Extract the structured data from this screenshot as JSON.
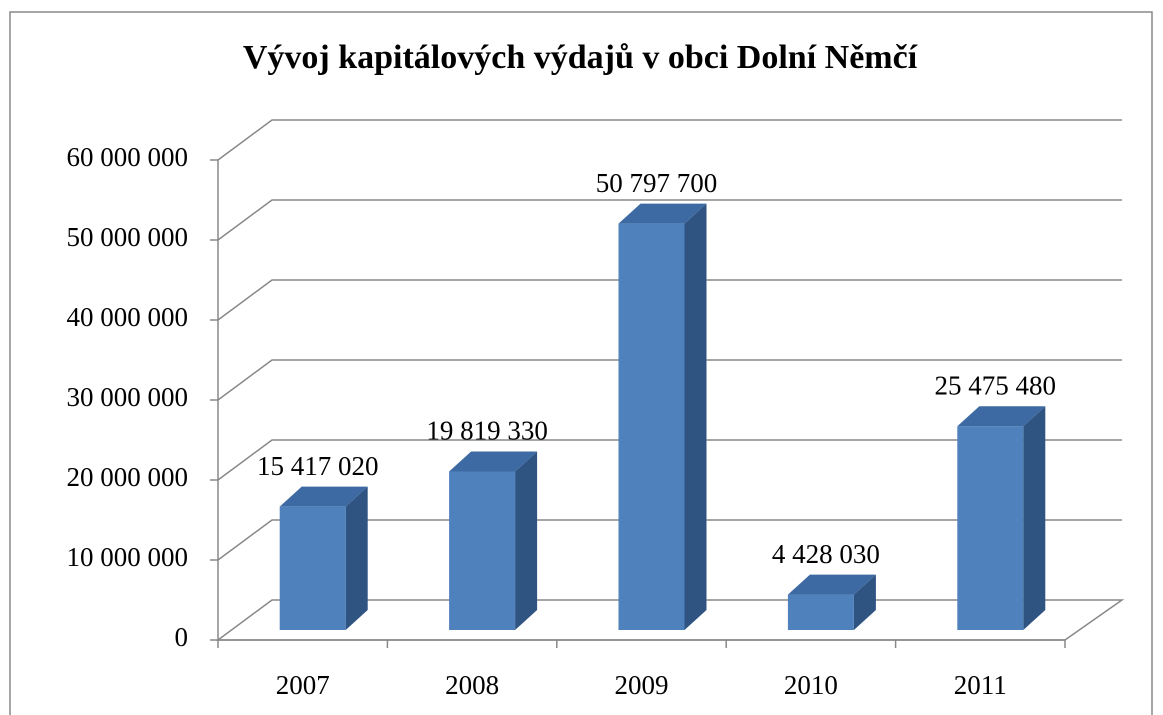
{
  "chart_data": {
    "type": "bar3d",
    "title": "Vývoj kapitálových výdajů v obci Dolní Němčí",
    "categories": [
      "2007",
      "2008",
      "2009",
      "2010",
      "2011"
    ],
    "values": [
      15417020,
      19819330,
      50797700,
      4428030,
      25475480
    ],
    "value_labels": [
      "15 417 020",
      "19 819 330",
      "50 797 700",
      "4 428 030",
      "25 475 480"
    ],
    "color": "#4f81bd",
    "ylim": [
      0,
      60000000
    ],
    "yticks": [
      0,
      {
        "value": 10000000,
        "label": "10 000 000"
      },
      {
        "value": 20000000,
        "label": "20 000 000"
      },
      {
        "value": 30000000,
        "label": "30 000 000"
      },
      {
        "value": 40000000,
        "label": "40 000 000"
      },
      {
        "value": 50000000,
        "label": "50 000 000"
      },
      {
        "value": 60000000,
        "label": "60 000 000"
      }
    ],
    "grid": true
  }
}
